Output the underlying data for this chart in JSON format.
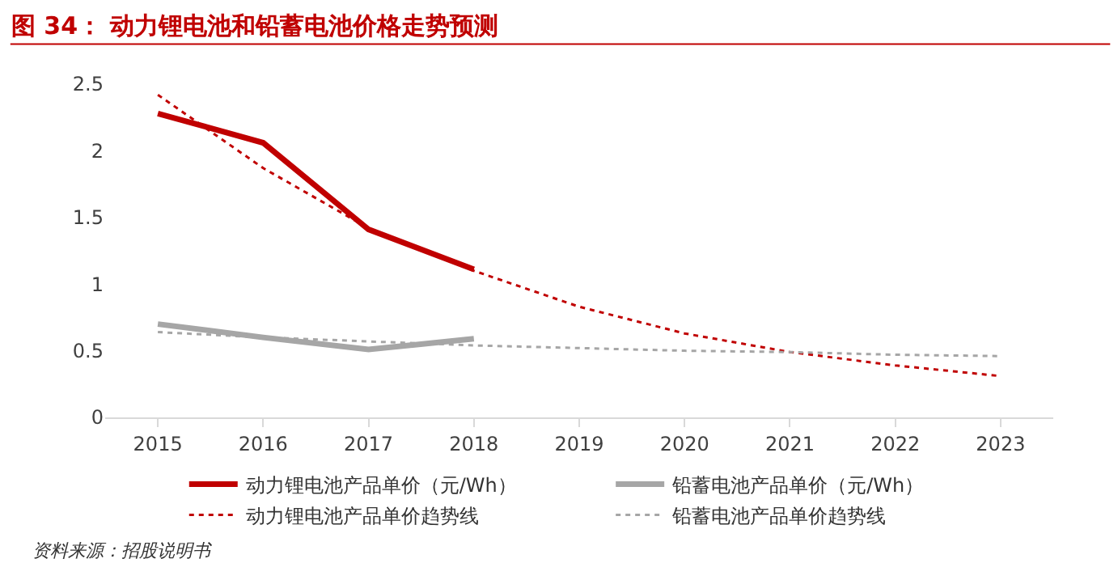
{
  "chart_data": {
    "type": "line",
    "title": "图 34： 动力锂电池和铅蓄电池价格走势预测",
    "categories": [
      "2015",
      "2016",
      "2017",
      "2018",
      "2019",
      "2020",
      "2021",
      "2022",
      "2023"
    ],
    "series": [
      {
        "name": "动力锂电池产品单价（元/Wh）",
        "color": "#c00000",
        "values": [
          2.28,
          2.06,
          1.41,
          1.11,
          null,
          null,
          null,
          null,
          null
        ],
        "line_style": "solid"
      },
      {
        "name": "铅蓄电池产品单价（元/Wh）",
        "color": "#a6a6a6",
        "values": [
          0.7,
          0.6,
          0.51,
          0.59,
          null,
          null,
          null,
          null,
          null
        ],
        "line_style": "solid"
      },
      {
        "name": "动力锂电池产品单价趋势线",
        "color": "#c00000",
        "values": [
          2.42,
          1.87,
          1.42,
          1.1,
          0.83,
          0.63,
          0.49,
          0.39,
          0.31
        ],
        "line_style": "dotted"
      },
      {
        "name": "铅蓄电池产品单价趋势线",
        "color": "#a6a6a6",
        "values": [
          0.64,
          0.6,
          0.57,
          0.54,
          0.52,
          0.5,
          0.49,
          0.47,
          0.46
        ],
        "line_style": "dotted"
      }
    ],
    "ylim": [
      0,
      2.5
    ],
    "yticks": [
      0,
      {
        "value": 0.5,
        "label": "0.5"
      },
      1,
      {
        "value": 1.5,
        "label": "1.5"
      },
      2,
      {
        "value": 2.5,
        "label": "2.5"
      }
    ],
    "legend": "bottom",
    "marker": "none",
    "annotations": [
      "资料来源：招股说明书"
    ]
  }
}
